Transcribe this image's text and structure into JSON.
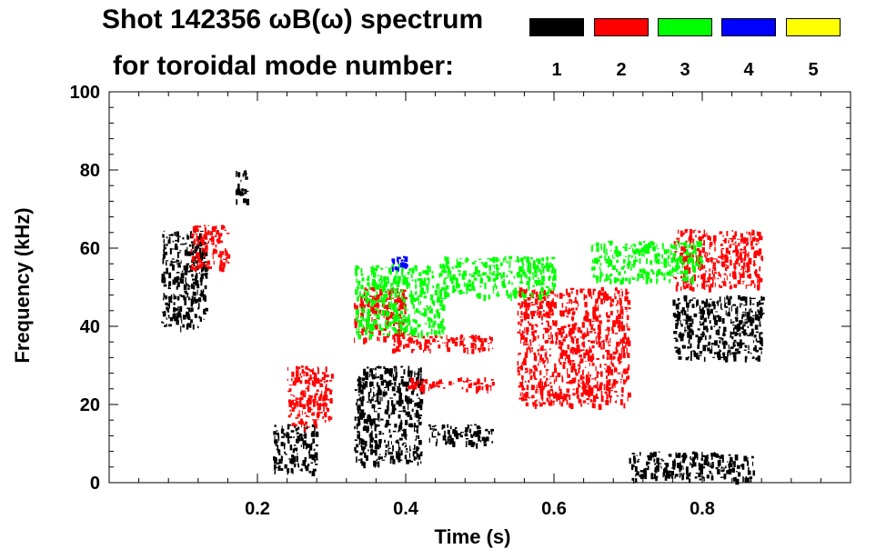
{
  "chart_data": {
    "type": "scatter",
    "title_line1": "Shot 142356 ωB(ω) spectrum",
    "title_line2": "for toroidal mode number:",
    "xlabel": "Time (s)",
    "ylabel": "Frequency (kHz)",
    "xlim": [
      0.0,
      1.0
    ],
    "ylim": [
      0,
      100
    ],
    "x_ticks": [
      "0.2",
      "0.4",
      "0.6",
      "0.8"
    ],
    "x_tick_values": [
      0.2,
      0.4,
      0.6,
      0.8
    ],
    "y_ticks": [
      "0",
      "20",
      "40",
      "60",
      "80",
      "100"
    ],
    "y_tick_values": [
      0,
      20,
      40,
      60,
      80,
      100
    ],
    "legend": [
      {
        "label": "1",
        "color": "#000000"
      },
      {
        "label": "2",
        "color": "#ff0000"
      },
      {
        "label": "3",
        "color": "#00ff00"
      },
      {
        "label": "4",
        "color": "#0000ff"
      },
      {
        "label": "5",
        "color": "#ffff00"
      }
    ],
    "series": [
      {
        "name": "n=1",
        "color": "#000000",
        "regions": [
          {
            "t": [
              0.07,
              0.13
            ],
            "f": [
              40,
              65
            ]
          },
          {
            "t": [
              0.17,
              0.185
            ],
            "f": [
              72,
              80
            ]
          },
          {
            "t": [
              0.22,
              0.28
            ],
            "f": [
              3,
              15
            ]
          },
          {
            "t": [
              0.33,
              0.42
            ],
            "f": [
              5,
              30
            ]
          },
          {
            "t": [
              0.43,
              0.52
            ],
            "f": [
              10,
              15
            ]
          },
          {
            "t": [
              0.7,
              0.87
            ],
            "f": [
              1,
              8
            ]
          },
          {
            "t": [
              0.76,
              0.88
            ],
            "f": [
              32,
              48
            ]
          }
        ]
      },
      {
        "name": "n=2",
        "color": "#ff0000",
        "regions": [
          {
            "t": [
              0.11,
              0.16
            ],
            "f": [
              55,
              66
            ]
          },
          {
            "t": [
              0.24,
              0.3
            ],
            "f": [
              14,
              30
            ]
          },
          {
            "t": [
              0.33,
              0.4
            ],
            "f": [
              37,
              50
            ]
          },
          {
            "t": [
              0.38,
              0.52
            ],
            "f": [
              34,
              38
            ]
          },
          {
            "t": [
              0.4,
              0.52
            ],
            "f": [
              24,
              27
            ]
          },
          {
            "t": [
              0.55,
              0.7
            ],
            "f": [
              20,
              50
            ]
          },
          {
            "t": [
              0.76,
              0.88
            ],
            "f": [
              50,
              65
            ]
          }
        ]
      },
      {
        "name": "n=3",
        "color": "#00ff00",
        "regions": [
          {
            "t": [
              0.33,
              0.45
            ],
            "f": [
              38,
              56
            ]
          },
          {
            "t": [
              0.45,
              0.6
            ],
            "f": [
              48,
              58
            ]
          },
          {
            "t": [
              0.65,
              0.8
            ],
            "f": [
              52,
              62
            ]
          }
        ]
      },
      {
        "name": "n=4",
        "color": "#0000ff",
        "regions": [
          {
            "t": [
              0.38,
              0.4
            ],
            "f": [
              55,
              58
            ]
          }
        ]
      }
    ]
  }
}
